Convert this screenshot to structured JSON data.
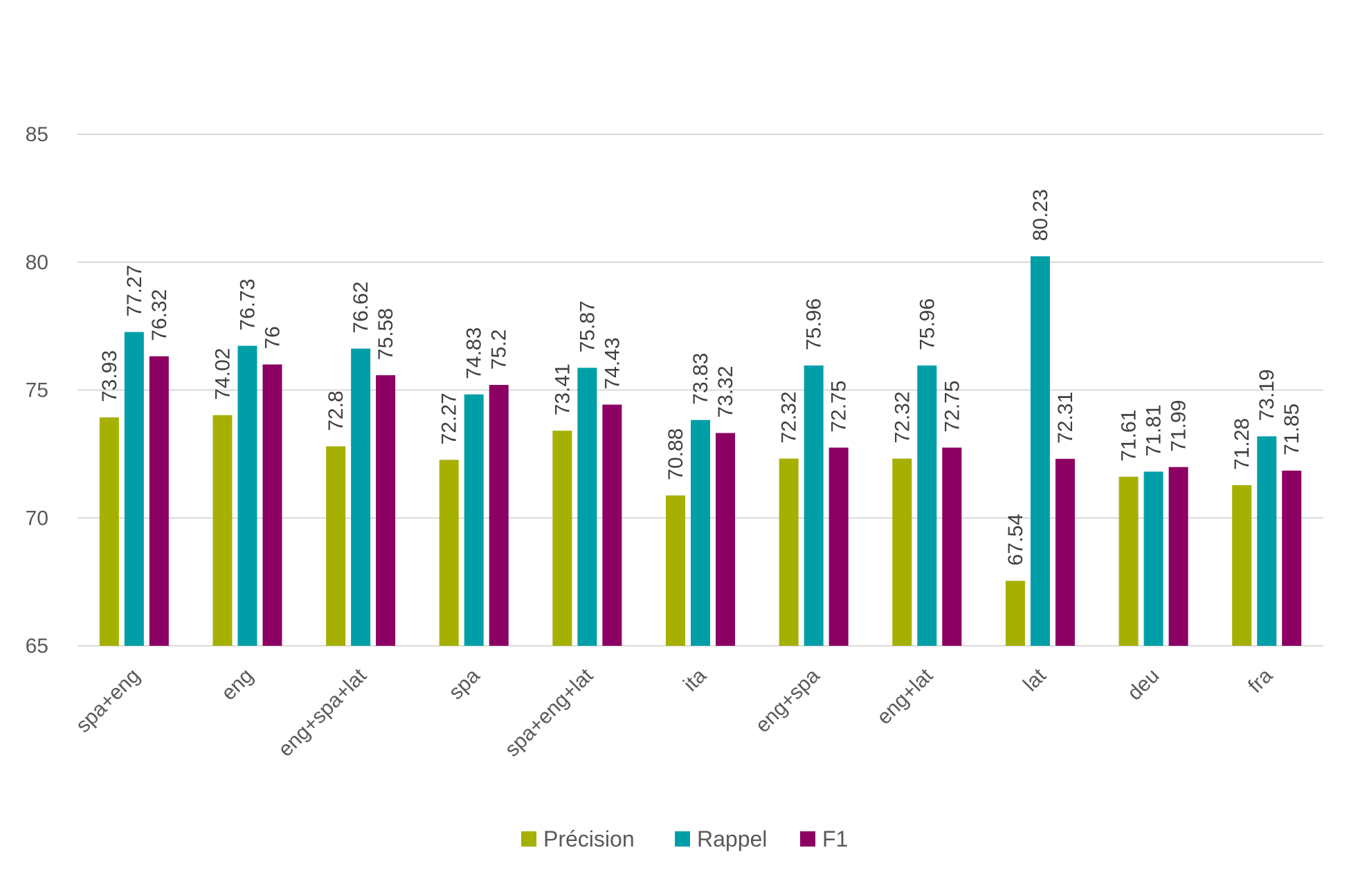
{
  "chart_data": {
    "type": "bar",
    "title": "",
    "xlabel": "",
    "ylabel": "",
    "ylim": [
      65,
      85
    ],
    "yticks": [
      65,
      70,
      75,
      80,
      85
    ],
    "grid": true,
    "legend_position": "bottom",
    "categories": [
      "spa+eng",
      "eng",
      "eng+spa+lat",
      "spa",
      "spa+eng+lat",
      "ita",
      "eng+spa",
      "eng+lat",
      "lat",
      "deu",
      "fra"
    ],
    "series": [
      {
        "name": "Précision",
        "color": "#a5b000",
        "values": [
          73.93,
          74.02,
          72.8,
          72.27,
          73.41,
          70.88,
          72.32,
          72.32,
          67.54,
          71.61,
          71.28
        ]
      },
      {
        "name": "Rappel",
        "color": "#009fa8",
        "values": [
          77.27,
          76.73,
          76.62,
          74.83,
          75.87,
          73.83,
          75.96,
          75.96,
          80.23,
          71.81,
          73.19
        ]
      },
      {
        "name": "F1",
        "color": "#8c0063",
        "values": [
          76.32,
          76,
          75.58,
          75.2,
          74.43,
          73.32,
          72.75,
          72.75,
          72.31,
          71.99,
          71.85
        ]
      }
    ]
  }
}
